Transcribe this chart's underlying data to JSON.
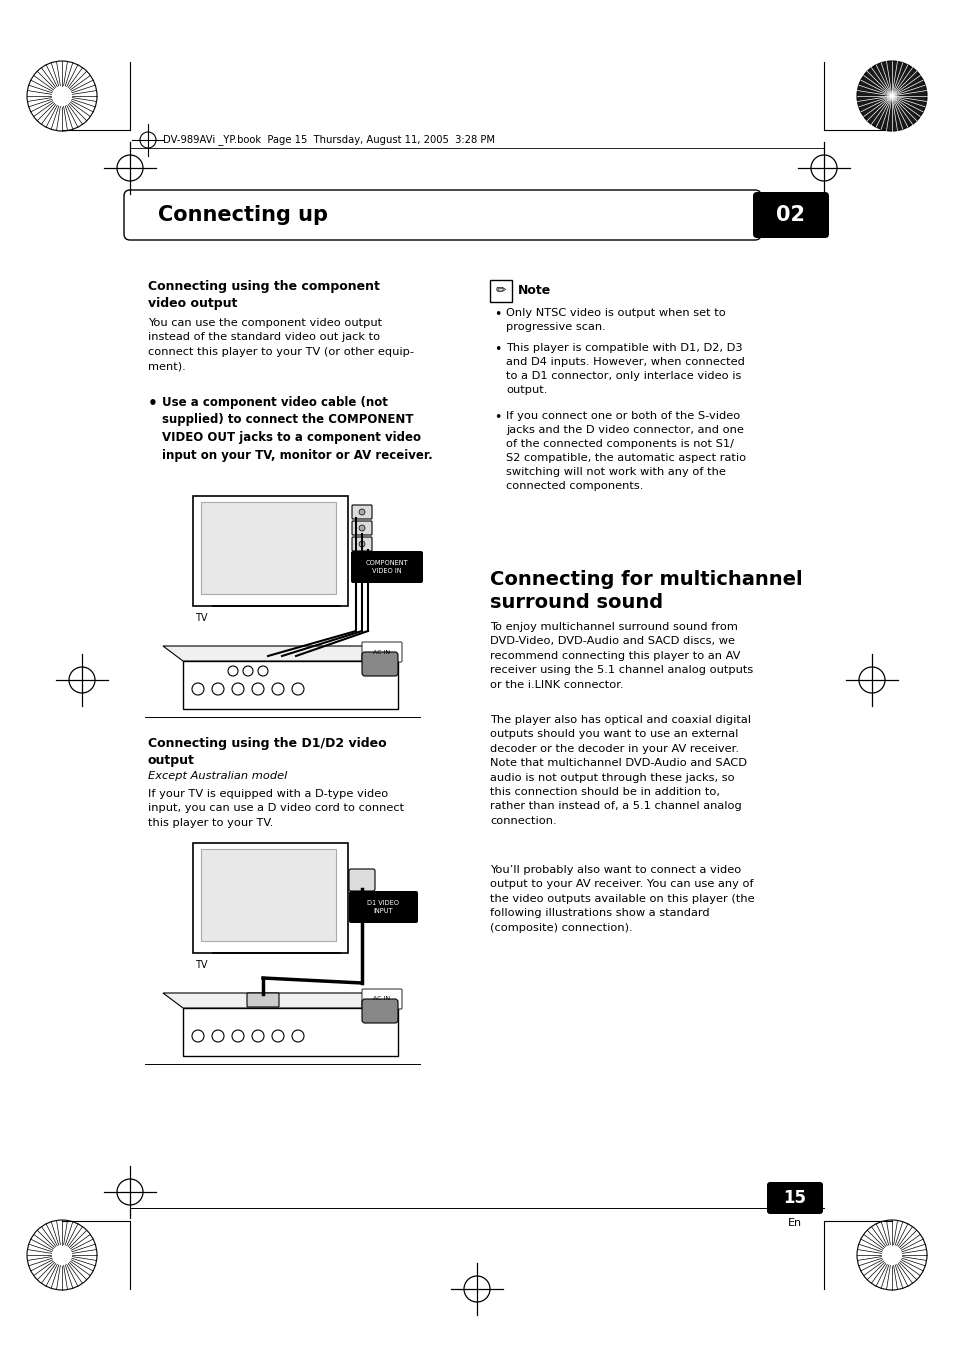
{
  "bg_color": "#ffffff",
  "page_header_text": "DV-989AVi _YP.book  Page 15  Thursday, August 11, 2005  3:28 PM",
  "chapter_title": "Connecting up",
  "chapter_number": "02",
  "section1_title": "Connecting using the component\nvideo output",
  "section1_body": "You can use the component video output\ninstead of the standard video out jack to\nconnect this player to your TV (or other equip-\nment).",
  "section1_bullet": "   Use a component video cable (not\n   supplied) to connect the COMPONENT\n   VIDEO OUT jacks to a component video\n   input on your TV, monitor or AV receiver.",
  "note_title": "Note",
  "note_bullet1": "Only NTSC video is output when set to\nprogressive scan.",
  "note_bullet2": "This player is compatible with D1, D2, D3\nand D4 inputs. However, when connected\nto a D1 connector, only interlace video is\noutput.",
  "note_bullet3": "If you connect one or both of the S-video\njacks and the D video connector, and one\nof the connected components is not S1/\nS2 compatible, the automatic aspect ratio\nswitching will not work with any of the\nconnected components.",
  "section2_title": "Connecting using the D1/D2 video\noutput",
  "section2_subtitle": "Except Australian model",
  "section2_body": "If your TV is equipped with a D-type video\ninput, you can use a D video cord to connect\nthis player to your TV.",
  "section3_title": "Connecting for multichannel\nsurround sound",
  "section3_body1": "To enjoy multichannel surround sound from\nDVD-Video, DVD-Audio and SACD discs, we\nrecommend connecting this player to an AV\nreceiver using the 5.1 channel analog outputs\nor the i.LINK connector.",
  "section3_body2": "The player also has optical and coaxial digital\noutputs should you want to use an external\ndecoder or the decoder in your AV receiver.\nNote that multichannel DVD-Audio and SACD\naudio is not output through these jacks, so\nthis connection should be in addition to,\nrather than instead of, a 5.1 channel analog\nconnection.",
  "section3_body3": "You’ll probably also want to connect a video\noutput to your AV receiver. You can use any of\nthe video outputs available on this player (the\nfollowing illustrations show a standard\n(composite) connection).",
  "page_number": "15",
  "page_lang": "En"
}
